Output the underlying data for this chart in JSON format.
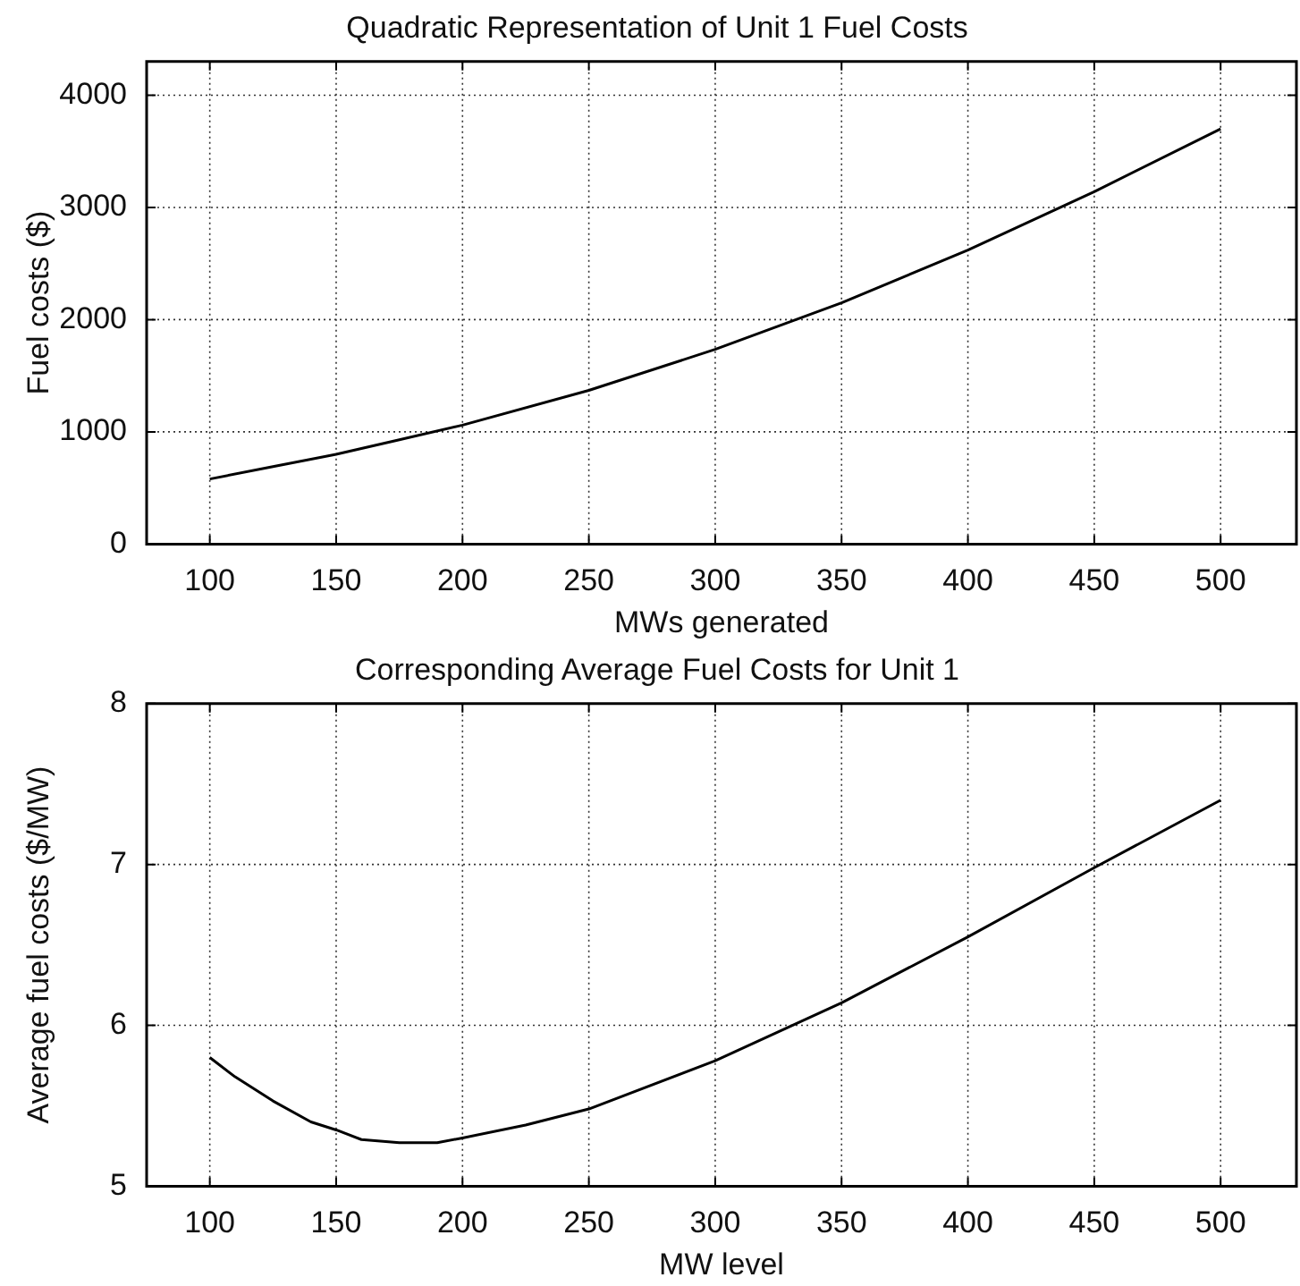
{
  "chart_data": [
    {
      "type": "line",
      "title": "Quadratic Representation of Unit 1 Fuel Costs",
      "xlabel": "MWs generated",
      "ylabel": "Fuel costs ($)",
      "x": [
        100,
        125,
        150,
        175,
        200,
        250,
        300,
        350,
        400,
        450,
        500
      ],
      "series": [
        {
          "color": "#000000",
          "values": [
            580,
            690,
            800,
            930,
            1060,
            1370,
            1735,
            2150,
            2620,
            3140,
            3700
          ]
        }
      ],
      "xlim": [
        75,
        530
      ],
      "xticks": [
        100,
        150,
        200,
        250,
        300,
        350,
        400,
        450,
        500
      ],
      "ylim": [
        0,
        4300
      ],
      "yticks": [
        0,
        1000,
        2000,
        3000,
        4000
      ],
      "grid": true,
      "legend": false,
      "marker": "none",
      "line_style": "solid"
    },
    {
      "type": "line",
      "title": "Corresponding Average Fuel Costs for Unit 1",
      "xlabel": "MW level",
      "ylabel": "Average fuel costs ($/MW)",
      "x": [
        100,
        110,
        125,
        140,
        150,
        160,
        175,
        190,
        200,
        225,
        250,
        300,
        350,
        400,
        450,
        500
      ],
      "series": [
        {
          "color": "#000000",
          "values": [
            5.8,
            5.68,
            5.53,
            5.4,
            5.35,
            5.29,
            5.27,
            5.27,
            5.3,
            5.38,
            5.48,
            5.78,
            6.14,
            6.55,
            6.98,
            7.4
          ]
        }
      ],
      "xlim": [
        75,
        530
      ],
      "xticks": [
        100,
        150,
        200,
        250,
        300,
        350,
        400,
        450,
        500
      ],
      "ylim": [
        5,
        8
      ],
      "yticks": [
        5,
        6,
        7,
        8
      ],
      "grid": true,
      "legend": false,
      "marker": "none",
      "line_style": "solid"
    }
  ]
}
